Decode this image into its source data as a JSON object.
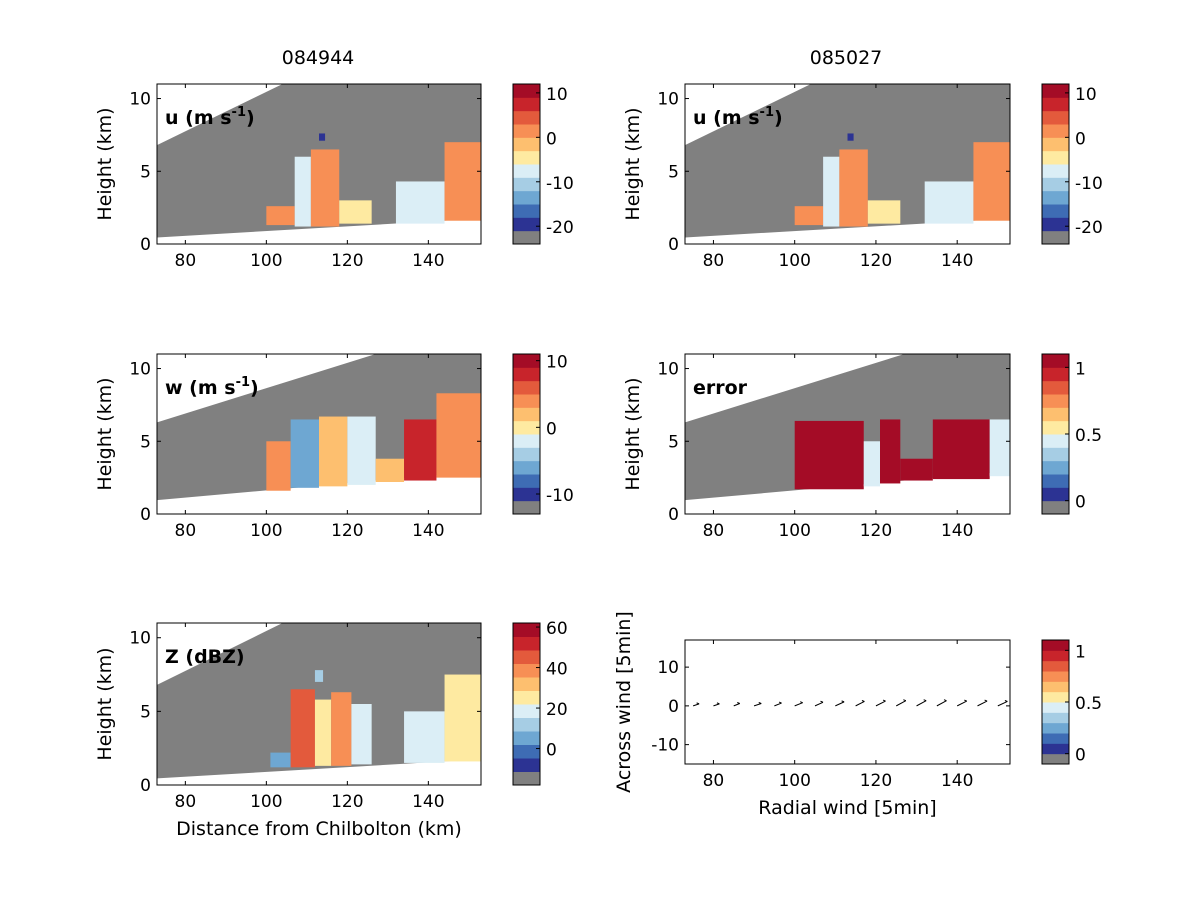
{
  "figure": {
    "titles": [
      "084944",
      "085027"
    ]
  },
  "colors": {
    "grey": "#808080",
    "palette": [
      "#808080",
      "#2c3393",
      "#3e6cb4",
      "#6ea7d2",
      "#a6cde4",
      "#dbeef6",
      "#feeaa1",
      "#fdbf6f",
      "#f78f55",
      "#e35a3c",
      "#c8242b",
      "#a40c26"
    ]
  },
  "chart_data": [
    {
      "id": "p1",
      "type": "heatmap",
      "title": "084944",
      "label": "u (m s",
      "label_sup": "-1",
      "label_tail": ")",
      "ylabel": "Height (km)",
      "xlabel": "",
      "xlim": [
        73,
        153
      ],
      "ylim": [
        0,
        11
      ],
      "xticks": [
        "80",
        "100",
        "120",
        "140"
      ],
      "xtick_values": [
        80,
        100,
        120,
        140
      ],
      "yticks": [
        "0",
        "5",
        "10"
      ],
      "ytick_values": [
        0,
        5,
        10
      ],
      "colorbar": {
        "min": -24,
        "max": 12,
        "ticks": [
          "10",
          "0",
          "-10",
          "-20"
        ],
        "tick_values": [
          10,
          0,
          -10,
          -20
        ]
      },
      "beam": {
        "lower": [
          [
            73,
            0.45
          ],
          [
            153,
            1.75
          ]
        ],
        "upper": [
          [
            73,
            6.8
          ],
          [
            104,
            11
          ]
        ]
      },
      "echoes": [
        {
          "x": 100,
          "x2": 107,
          "y": 1.3,
          "y2": 2.6,
          "v": 0
        },
        {
          "x": 107,
          "x2": 111,
          "y": 1.2,
          "y2": 6.0,
          "v": -8
        },
        {
          "x": 111,
          "x2": 118,
          "y": 1.2,
          "y2": 6.5,
          "v": 1
        },
        {
          "x": 118,
          "x2": 126,
          "y": 1.4,
          "y2": 3.0,
          "v": -4
        },
        {
          "x": 132,
          "x2": 144,
          "y": 1.4,
          "y2": 4.3,
          "v": -7
        },
        {
          "x": 144,
          "x2": 153,
          "y": 1.6,
          "y2": 7.0,
          "v": 2
        },
        {
          "x": 113,
          "x2": 114.5,
          "y": 7.1,
          "y2": 7.6,
          "v": -20
        }
      ]
    },
    {
      "id": "p2",
      "type": "heatmap",
      "title": "085027",
      "label": "u (m s",
      "label_sup": "-1",
      "label_tail": ")",
      "ylabel": "Height (km)",
      "xlabel": "",
      "xlim": [
        73,
        153
      ],
      "ylim": [
        0,
        11
      ],
      "xticks": [
        "80",
        "100",
        "120",
        "140"
      ],
      "xtick_values": [
        80,
        100,
        120,
        140
      ],
      "yticks": [
        "0",
        "5",
        "10"
      ],
      "ytick_values": [
        0,
        5,
        10
      ],
      "colorbar": {
        "min": -24,
        "max": 12,
        "ticks": [
          "10",
          "0",
          "-10",
          "-20"
        ],
        "tick_values": [
          10,
          0,
          -10,
          -20
        ]
      },
      "beam": {
        "lower": [
          [
            73,
            0.45
          ],
          [
            153,
            1.75
          ]
        ],
        "upper": [
          [
            73,
            6.8
          ],
          [
            104,
            11
          ]
        ]
      },
      "echoes": [
        {
          "x": 100,
          "x2": 107,
          "y": 1.3,
          "y2": 2.6,
          "v": 0
        },
        {
          "x": 107,
          "x2": 111,
          "y": 1.2,
          "y2": 6.0,
          "v": -8
        },
        {
          "x": 111,
          "x2": 118,
          "y": 1.2,
          "y2": 6.5,
          "v": 1
        },
        {
          "x": 118,
          "x2": 126,
          "y": 1.4,
          "y2": 3.0,
          "v": -4
        },
        {
          "x": 132,
          "x2": 144,
          "y": 1.4,
          "y2": 4.3,
          "v": -7
        },
        {
          "x": 144,
          "x2": 153,
          "y": 1.6,
          "y2": 7.0,
          "v": 2
        },
        {
          "x": 113,
          "x2": 114.5,
          "y": 7.1,
          "y2": 7.6,
          "v": -20
        }
      ]
    },
    {
      "id": "p3",
      "type": "heatmap",
      "label": "w (m s",
      "label_sup": "-1",
      "label_tail": ")",
      "ylabel": "Height (km)",
      "xlabel": "",
      "xlim": [
        73,
        153
      ],
      "ylim": [
        0,
        11
      ],
      "xticks": [
        "80",
        "100",
        "120",
        "140"
      ],
      "xtick_values": [
        80,
        100,
        120,
        140
      ],
      "yticks": [
        "0",
        "5",
        "10"
      ],
      "ytick_values": [
        0,
        5,
        10
      ],
      "colorbar": {
        "min": -13,
        "max": 11,
        "ticks": [
          "10",
          "0",
          "-10"
        ],
        "tick_values": [
          10,
          0,
          -10
        ]
      },
      "beam": {
        "lower": [
          [
            73,
            0.95
          ],
          [
            153,
            2.95
          ]
        ],
        "upper": [
          [
            73,
            6.3
          ],
          [
            127,
            11
          ]
        ]
      },
      "echoes": [
        {
          "x": 100,
          "x2": 106,
          "y": 1.6,
          "y2": 5.0,
          "v": 4
        },
        {
          "x": 106,
          "x2": 113,
          "y": 1.8,
          "y2": 6.5,
          "v": -6
        },
        {
          "x": 113,
          "x2": 120,
          "y": 1.9,
          "y2": 6.7,
          "v": 2
        },
        {
          "x": 120,
          "x2": 127,
          "y": 2.0,
          "y2": 6.7,
          "v": -3
        },
        {
          "x": 127,
          "x2": 134,
          "y": 2.2,
          "y2": 3.8,
          "v": 1
        },
        {
          "x": 134,
          "x2": 142,
          "y": 2.3,
          "y2": 6.5,
          "v": 8
        },
        {
          "x": 142,
          "x2": 153,
          "y": 2.5,
          "y2": 8.3,
          "v": 3
        }
      ]
    },
    {
      "id": "p4",
      "type": "heatmap",
      "label": "error",
      "label_sup": "",
      "label_tail": "",
      "ylabel": "Height (km)",
      "xlabel": "",
      "xlim": [
        73,
        153
      ],
      "ylim": [
        0,
        11
      ],
      "xticks": [
        "80",
        "100",
        "120",
        "140"
      ],
      "xtick_values": [
        80,
        100,
        120,
        140
      ],
      "yticks": [
        "0",
        "5",
        "10"
      ],
      "ytick_values": [
        0,
        5,
        10
      ],
      "colorbar": {
        "min": -0.1,
        "max": 1.1,
        "ticks": [
          "1",
          "0.5",
          "0"
        ],
        "tick_values": [
          1,
          0.5,
          0
        ]
      },
      "beam": {
        "lower": [
          [
            73,
            0.95
          ],
          [
            153,
            2.95
          ]
        ],
        "upper": [
          [
            73,
            6.3
          ],
          [
            127,
            11
          ]
        ]
      },
      "echoes": [
        {
          "x": 100,
          "x2": 117,
          "y": 1.7,
          "y2": 6.4,
          "v": 1
        },
        {
          "x": 117,
          "x2": 121,
          "y": 1.9,
          "y2": 5.0,
          "v": 0.5
        },
        {
          "x": 121,
          "x2": 126,
          "y": 2.1,
          "y2": 6.5,
          "v": 1
        },
        {
          "x": 126,
          "x2": 134,
          "y": 2.3,
          "y2": 3.8,
          "v": 1
        },
        {
          "x": 134,
          "x2": 148,
          "y": 2.4,
          "y2": 6.5,
          "v": 1
        },
        {
          "x": 148,
          "x2": 153,
          "y": 2.6,
          "y2": 6.5,
          "v": 0.4
        }
      ]
    },
    {
      "id": "p5",
      "type": "heatmap",
      "label": "Z (dBZ)",
      "label_sup": "",
      "label_tail": "",
      "ylabel": "Height (km)",
      "xlabel": "Distance from Chilbolton (km)",
      "xlim": [
        73,
        153
      ],
      "ylim": [
        0,
        11
      ],
      "xticks": [
        "80",
        "100",
        "120",
        "140"
      ],
      "xtick_values": [
        80,
        100,
        120,
        140
      ],
      "yticks": [
        "0",
        "5",
        "10"
      ],
      "ytick_values": [
        0,
        5,
        10
      ],
      "colorbar": {
        "min": -18,
        "max": 62,
        "ticks": [
          "60",
          "40",
          "20",
          "0"
        ],
        "tick_values": [
          60,
          40,
          20,
          0
        ]
      },
      "beam": {
        "lower": [
          [
            73,
            0.45
          ],
          [
            153,
            1.75
          ]
        ],
        "upper": [
          [
            73,
            6.8
          ],
          [
            104,
            11
          ]
        ]
      },
      "echoes": [
        {
          "x": 101,
          "x2": 106,
          "y": 1.2,
          "y2": 2.2,
          "v": 3
        },
        {
          "x": 106,
          "x2": 112,
          "y": 1.2,
          "y2": 6.5,
          "v": 45
        },
        {
          "x": 112,
          "x2": 116,
          "y": 1.3,
          "y2": 5.8,
          "v": 22
        },
        {
          "x": 116,
          "x2": 121,
          "y": 1.3,
          "y2": 6.3,
          "v": 40
        },
        {
          "x": 121,
          "x2": 126,
          "y": 1.4,
          "y2": 5.5,
          "v": 16
        },
        {
          "x": 134,
          "x2": 144,
          "y": 1.5,
          "y2": 5.0,
          "v": 18
        },
        {
          "x": 144,
          "x2": 153,
          "y": 1.6,
          "y2": 7.5,
          "v": 28
        },
        {
          "x": 112,
          "x2": 114,
          "y": 7.0,
          "y2": 7.8,
          "v": 10
        }
      ]
    },
    {
      "id": "p6",
      "type": "scatter",
      "xlabel": "Radial wind [5min]",
      "ylabel": "Across wind [5min]",
      "xlim": [
        73,
        153
      ],
      "ylim": [
        -15,
        17
      ],
      "xticks": [
        "80",
        "100",
        "120",
        "140"
      ],
      "xtick_values": [
        80,
        100,
        120,
        140
      ],
      "yticks": [
        "10",
        "0",
        "-10"
      ],
      "ytick_values": [
        10,
        0,
        -10
      ],
      "colorbar": {
        "min": -0.1,
        "max": 1.1,
        "ticks": [
          "1",
          "0.5",
          "0"
        ],
        "tick_values": [
          1,
          0.5,
          0
        ]
      },
      "arrows": [
        {
          "x": 75,
          "y": 0,
          "u": 1.5,
          "v": 0.5
        },
        {
          "x": 80,
          "y": 0,
          "u": 1.5,
          "v": 0.5
        },
        {
          "x": 85,
          "y": 0,
          "u": 1.5,
          "v": 0.6
        },
        {
          "x": 90,
          "y": 0,
          "u": 1.8,
          "v": 0.6
        },
        {
          "x": 95,
          "y": 0,
          "u": 1.8,
          "v": 0.7
        },
        {
          "x": 100,
          "y": 0,
          "u": 2.0,
          "v": 0.8
        },
        {
          "x": 105,
          "y": 0,
          "u": 2.0,
          "v": 0.9
        },
        {
          "x": 110,
          "y": 0,
          "u": 2.2,
          "v": 1.0
        },
        {
          "x": 115,
          "y": 0,
          "u": 2.2,
          "v": 1.1
        },
        {
          "x": 120,
          "y": 0,
          "u": 2.4,
          "v": 1.2
        },
        {
          "x": 125,
          "y": 0,
          "u": 2.4,
          "v": 1.3
        },
        {
          "x": 130,
          "y": 0,
          "u": 2.4,
          "v": 1.3
        },
        {
          "x": 135,
          "y": 0,
          "u": 2.4,
          "v": 1.3
        },
        {
          "x": 140,
          "y": 0,
          "u": 2.4,
          "v": 1.2
        },
        {
          "x": 145,
          "y": 0,
          "u": 2.4,
          "v": 1.2
        },
        {
          "x": 150,
          "y": 0,
          "u": 2.4,
          "v": 1.1
        }
      ]
    }
  ]
}
